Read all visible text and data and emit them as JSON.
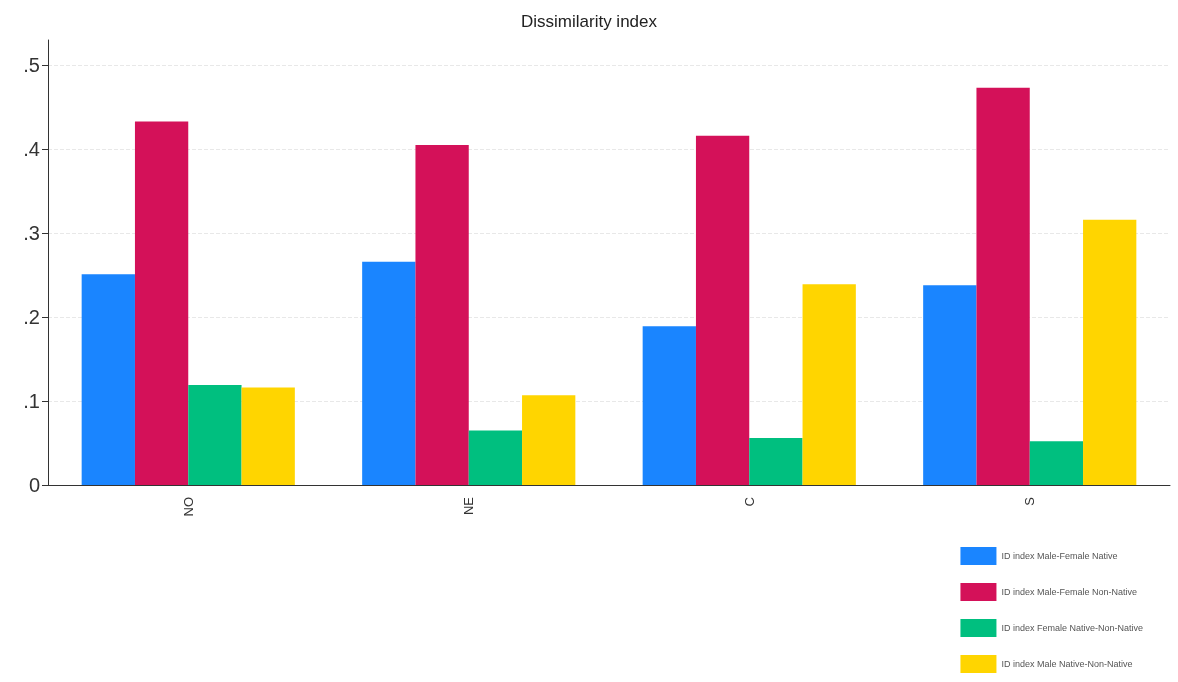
{
  "chart_data": {
    "type": "bar",
    "title": "Dissimilarity index",
    "categories": [
      "NO",
      "NE",
      "C",
      "S"
    ],
    "series": [
      {
        "name": "ID index Male-Female Native",
        "color": "#1a85ff",
        "values": [
          0.251,
          0.266,
          0.189,
          0.238
        ]
      },
      {
        "name": "ID index Male-Female Non-Native",
        "color": "#d41159",
        "values": [
          0.433,
          0.405,
          0.416,
          0.473
        ]
      },
      {
        "name": "ID index Female Native-Non-Native",
        "color": "#00bf7f",
        "values": [
          0.119,
          0.065,
          0.056,
          0.052
        ]
      },
      {
        "name": "ID index Male Native-Non-Native",
        "color": "#ffd500",
        "values": [
          0.116,
          0.107,
          0.239,
          0.316
        ]
      }
    ],
    "ylim": [
      0,
      0.53
    ],
    "yticks": [
      {
        "value": 0,
        "label": "0"
      },
      {
        "value": 0.1,
        "label": ".1"
      },
      {
        "value": 0.2,
        "label": ".2"
      },
      {
        "value": 0.3,
        "label": ".3"
      },
      {
        "value": 0.4,
        "label": ".4"
      },
      {
        "value": 0.5,
        "label": ".5"
      }
    ],
    "grid": "y",
    "legend": "bottom right"
  }
}
